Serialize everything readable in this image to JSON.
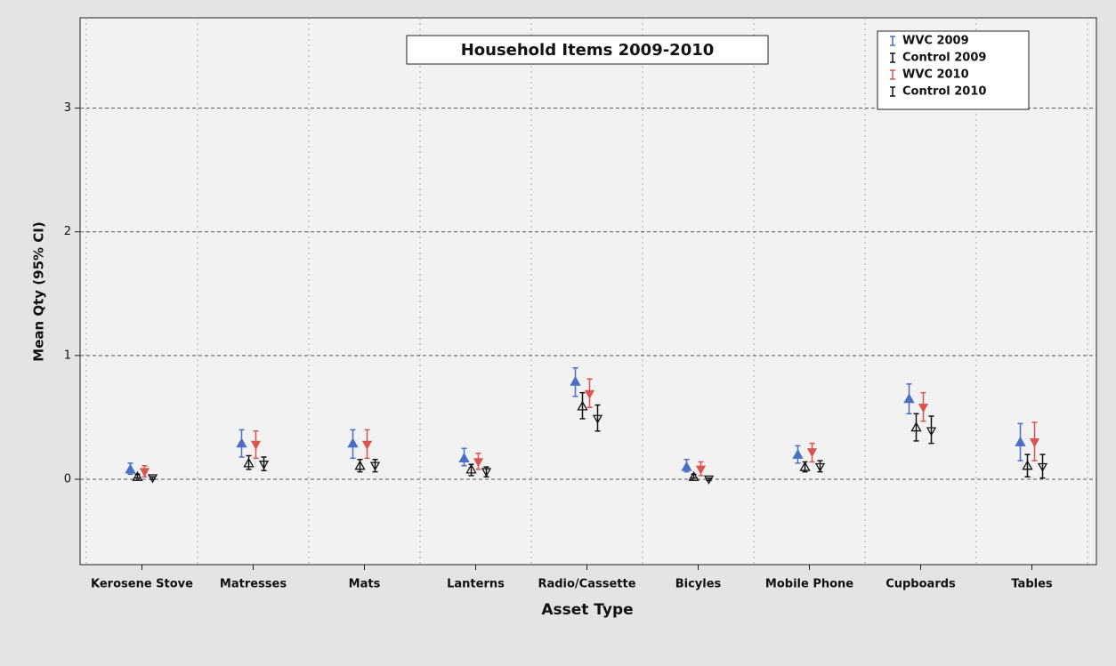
{
  "chart_data": {
    "type": "errorbar",
    "title": "Household Items 2009-2010",
    "x_label": "Asset Type",
    "y_label": "Mean Qty (95% CI)",
    "categories": [
      "Kerosene Stove",
      "Matresses",
      "Mats",
      "Lanterns",
      "Radio/Cassette",
      "Bicyles",
      "Mobile Phone",
      "Cupboards",
      "Tables"
    ],
    "ylim": [
      -0.69,
      3.73
    ],
    "yticks": [
      0,
      1,
      2,
      3
    ],
    "grid": true,
    "legend": "top-right",
    "series": [
      {
        "name": "WVC 2009",
        "color": "#4a6fc4",
        "marker": "triangle-up",
        "filled": true,
        "values": [
          0.08,
          0.29,
          0.29,
          0.17,
          0.79,
          0.1,
          0.2,
          0.65,
          0.3
        ],
        "lower": [
          0.04,
          0.18,
          0.17,
          0.11,
          0.67,
          0.06,
          0.13,
          0.53,
          0.15
        ],
        "upper": [
          0.13,
          0.4,
          0.4,
          0.25,
          0.9,
          0.16,
          0.27,
          0.77,
          0.45
        ]
      },
      {
        "name": "Control 2009",
        "color": "#111111",
        "marker": "triangle-up",
        "filled": false,
        "values": [
          0.02,
          0.13,
          0.11,
          0.08,
          0.59,
          0.02,
          0.1,
          0.42,
          0.11
        ],
        "lower": [
          0.01,
          0.08,
          0.06,
          0.03,
          0.49,
          0.01,
          0.06,
          0.31,
          0.02
        ],
        "upper": [
          0.04,
          0.19,
          0.16,
          0.12,
          0.7,
          0.04,
          0.14,
          0.53,
          0.2
        ]
      },
      {
        "name": "WVC 2010",
        "color": "#d9534f",
        "marker": "triangle-down",
        "filled": true,
        "values": [
          0.06,
          0.28,
          0.28,
          0.14,
          0.69,
          0.08,
          0.22,
          0.58,
          0.3
        ],
        "lower": [
          0.02,
          0.17,
          0.17,
          0.08,
          0.58,
          0.03,
          0.14,
          0.47,
          0.15
        ],
        "upper": [
          0.11,
          0.39,
          0.4,
          0.21,
          0.81,
          0.14,
          0.29,
          0.7,
          0.46
        ]
      },
      {
        "name": "Control 2010",
        "color": "#111111",
        "marker": "triangle-down",
        "filled": false,
        "values": [
          0.01,
          0.12,
          0.11,
          0.06,
          0.49,
          0.0,
          0.1,
          0.39,
          0.1
        ],
        "lower": [
          0.0,
          0.07,
          0.06,
          0.02,
          0.39,
          -0.01,
          0.06,
          0.29,
          0.01
        ],
        "upper": [
          0.02,
          0.18,
          0.16,
          0.1,
          0.6,
          0.01,
          0.15,
          0.51,
          0.2
        ]
      }
    ]
  }
}
